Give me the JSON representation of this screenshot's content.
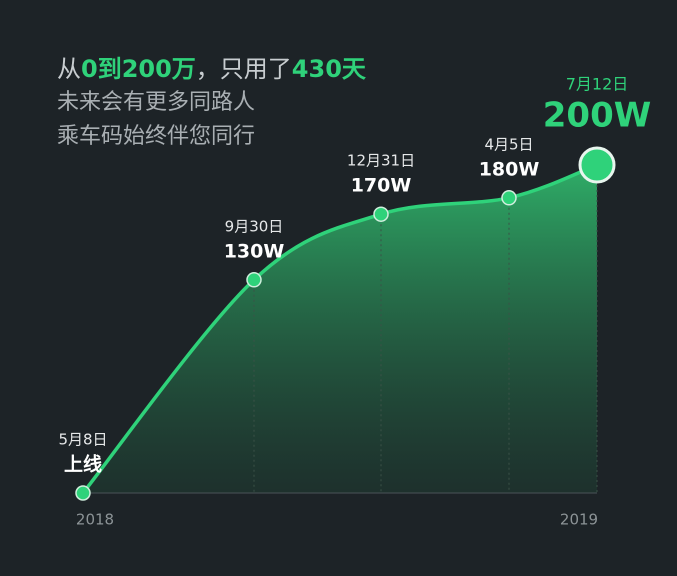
{
  "header": {
    "title_parts": [
      "从",
      "0到200万",
      "，只用了",
      "430天"
    ],
    "lines": [
      "未来会有更多同路人",
      "乘车码始终伴您同行"
    ]
  },
  "chart_data": {
    "type": "area",
    "categories": [
      "5月8日",
      "9月30日",
      "12月31日",
      "4月5日",
      "7月12日"
    ],
    "values": [
      0,
      130,
      170,
      180,
      200
    ],
    "value_labels": [
      "上线",
      "130W",
      "170W",
      "180W",
      "200W"
    ],
    "x_axis_labels": [
      "2018",
      "2019"
    ],
    "ylim": [
      0,
      200
    ],
    "color": "#2fd27a"
  }
}
